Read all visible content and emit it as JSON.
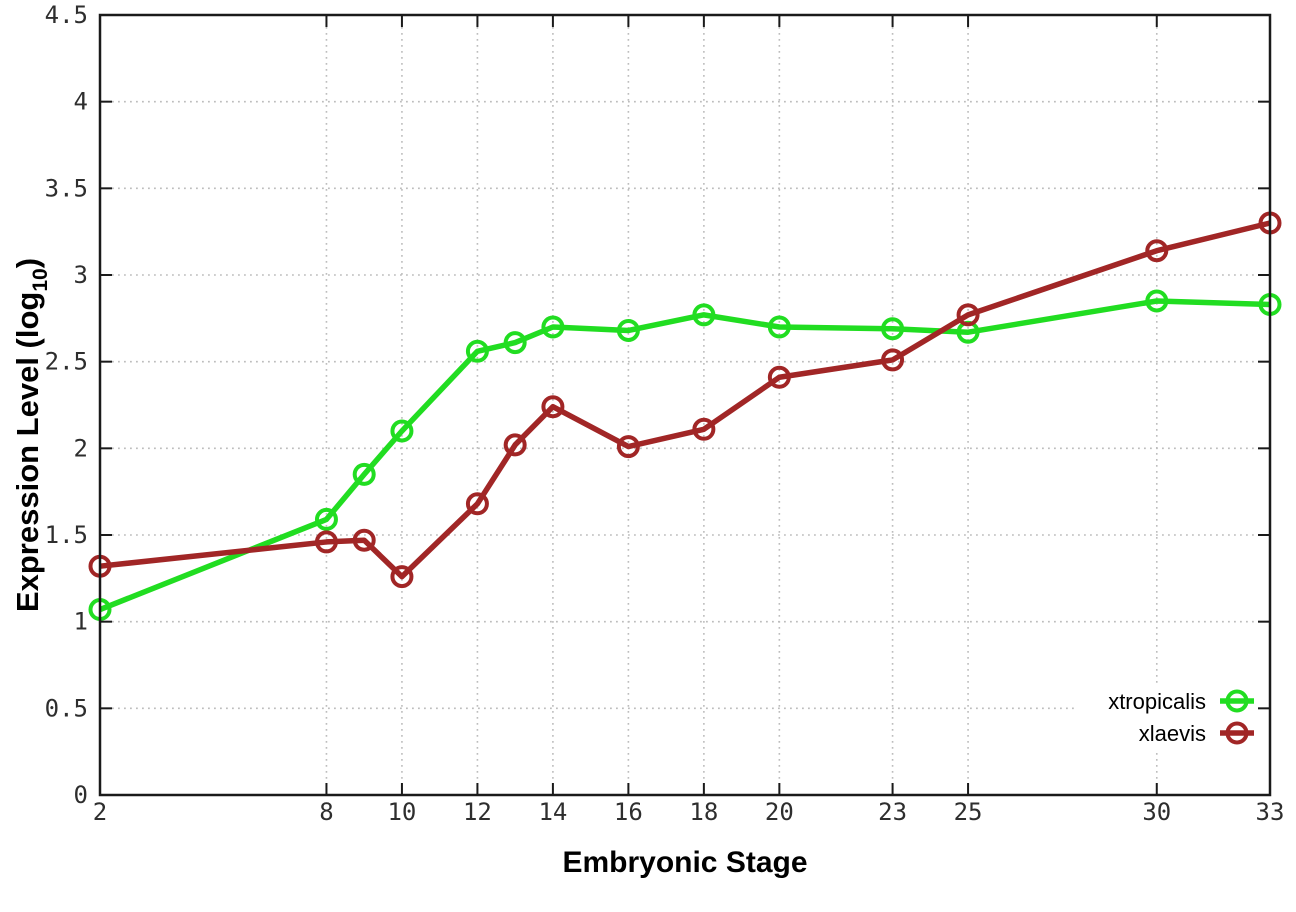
{
  "chart_data": {
    "type": "line",
    "title": "",
    "xlabel": "Embryonic Stage",
    "ylabel": "Expression Level (log10)",
    "ylabel_parts": {
      "prefix": "Expression Level (log",
      "subscript": "10",
      "suffix": ")"
    },
    "x": [
      2,
      8,
      9,
      10,
      12,
      13,
      14,
      16,
      18,
      20,
      23,
      25,
      30,
      33
    ],
    "series": [
      {
        "name": "xtropicalis",
        "color": "#21dd21",
        "marker": "open-circle",
        "values": [
          1.07,
          1.59,
          1.85,
          2.1,
          2.56,
          2.61,
          2.7,
          2.68,
          2.77,
          2.7,
          2.69,
          2.67,
          2.85,
          2.83
        ]
      },
      {
        "name": "xlaevis",
        "color": "#a12626",
        "marker": "open-circle",
        "values": [
          1.32,
          1.46,
          1.47,
          1.26,
          1.68,
          2.02,
          2.24,
          2.01,
          2.11,
          2.41,
          2.51,
          2.77,
          3.14,
          3.3
        ]
      }
    ],
    "xlim": [
      2,
      33
    ],
    "ylim": [
      0,
      4.5
    ],
    "xticks": [
      2,
      8,
      10,
      12,
      14,
      16,
      18,
      20,
      23,
      25,
      30,
      33
    ],
    "yticks": [
      0,
      0.5,
      1,
      1.5,
      2,
      2.5,
      3,
      3.5,
      4,
      4.5
    ],
    "grid": true,
    "legend": {
      "position": "inside-bottom-right",
      "opaque_background": true,
      "labels": [
        "xtropicalis",
        "xlaevis"
      ]
    },
    "colors": {
      "background": "#ffffff",
      "grid": "#bdbdbd",
      "axis": "#1a1a1a",
      "tick_labels": "#2e2e2e",
      "axis_titles": "#000000"
    }
  }
}
